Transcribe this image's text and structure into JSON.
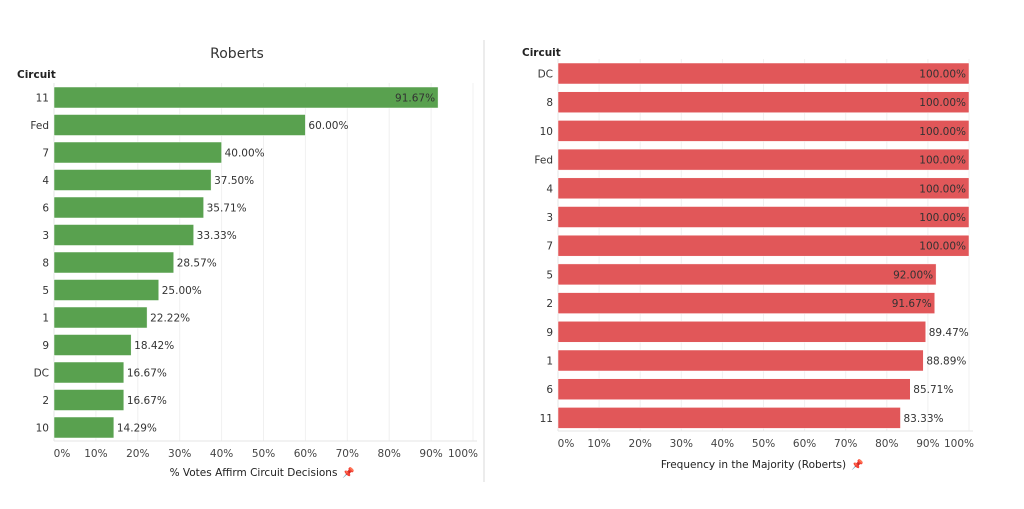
{
  "chart_data": [
    {
      "type": "bar",
      "orientation": "horizontal",
      "title": "Roberts",
      "ylabel": "Circuit",
      "xlabel": "% Votes Affirm Circuit Decisions",
      "categories": [
        "11",
        "Fed",
        "7",
        "4",
        "6",
        "3",
        "8",
        "5",
        "1",
        "9",
        "DC",
        "2",
        "10"
      ],
      "values": [
        91.67,
        60.0,
        40.0,
        37.5,
        35.71,
        33.33,
        28.57,
        25.0,
        22.22,
        18.42,
        16.67,
        16.67,
        14.29
      ],
      "data_labels": [
        "91.67%",
        "60.00%",
        "40.00%",
        "37.50%",
        "35.71%",
        "33.33%",
        "28.57%",
        "25.00%",
        "22.22%",
        "18.42%",
        "16.67%",
        "16.67%",
        "14.29%"
      ],
      "xlim": [
        0,
        100
      ],
      "x_ticks": [
        "0%",
        "10%",
        "20%",
        "30%",
        "40%",
        "50%",
        "60%",
        "70%",
        "80%",
        "90%",
        "100%"
      ],
      "grid": true,
      "color": "#59a14f"
    },
    {
      "type": "bar",
      "orientation": "horizontal",
      "title": "",
      "ylabel": "Circuit",
      "xlabel": "Frequency in the Majority (Roberts)",
      "categories": [
        "DC",
        "8",
        "10",
        "Fed",
        "4",
        "3",
        "7",
        "5",
        "2",
        "9",
        "1",
        "6",
        "11"
      ],
      "values": [
        100,
        100,
        100,
        100,
        100,
        100,
        100,
        92.0,
        91.67,
        89.47,
        88.89,
        85.71,
        83.33
      ],
      "data_labels": [
        "100.00%",
        "100.00%",
        "100.00%",
        "100.00%",
        "100.00%",
        "100.00%",
        "100.00%",
        "92.00%",
        "91.67%",
        "89.47%",
        "88.89%",
        "85.71%",
        "83.33%"
      ],
      "xlim": [
        0,
        100
      ],
      "x_ticks": [
        "0%",
        "10%",
        "20%",
        "30%",
        "40%",
        "50%",
        "60%",
        "70%",
        "80%",
        "90%",
        "100%"
      ],
      "grid": true,
      "color": "#e15759"
    }
  ],
  "icons": {
    "axis_pin": "pin-icon"
  }
}
